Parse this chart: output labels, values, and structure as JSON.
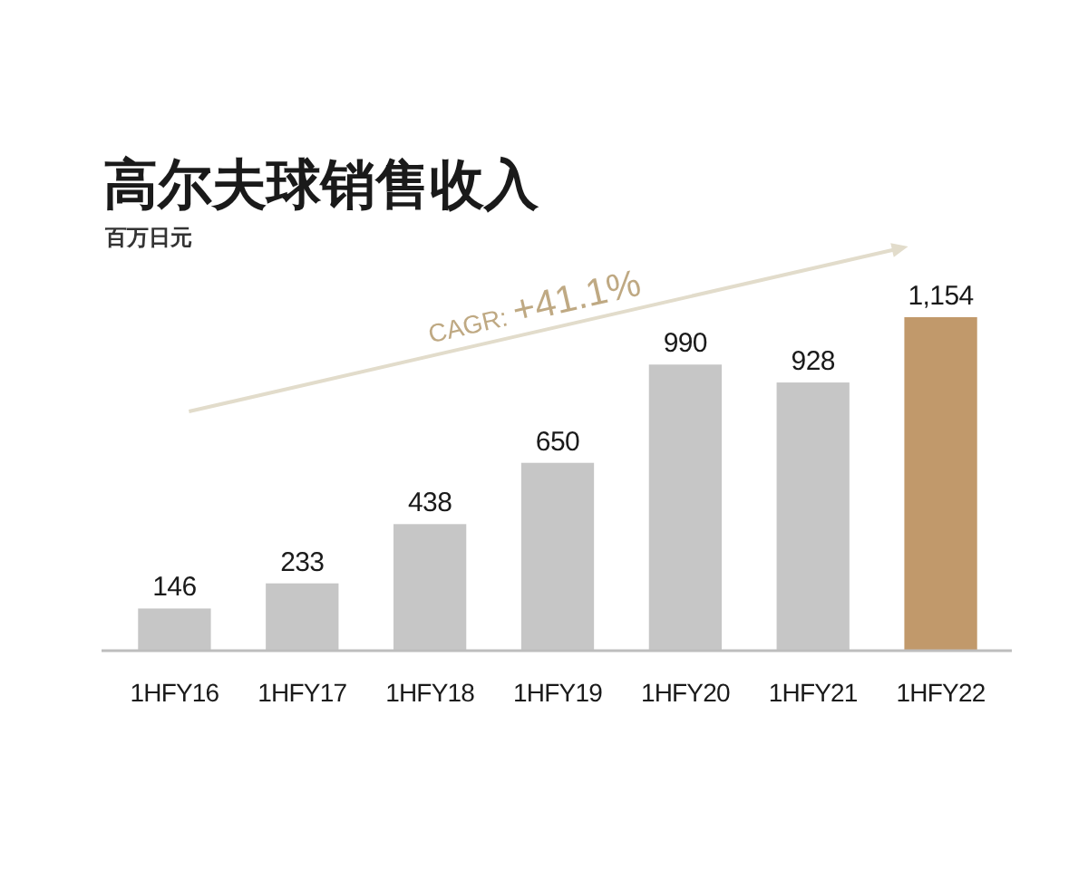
{
  "chart_data": {
    "type": "bar",
    "title": "高尔夫球销售收入",
    "subtitle": "百万日元",
    "categories": [
      "1HFY16",
      "1HFY17",
      "1HFY18",
      "1HFY19",
      "1HFY20",
      "1HFY21",
      "1HFY22"
    ],
    "values": [
      146,
      233,
      438,
      650,
      990,
      928,
      1154
    ],
    "colors": [
      "#c6c6c6",
      "#c6c6c6",
      "#c6c6c6",
      "#c6c6c6",
      "#c6c6c6",
      "#c6c6c6",
      "#c1996b"
    ],
    "value_labels": [
      "146",
      "233",
      "438",
      "650",
      "990",
      "928",
      "1,154"
    ],
    "annotations": [
      "CAGR: +41.1%"
    ]
  }
}
